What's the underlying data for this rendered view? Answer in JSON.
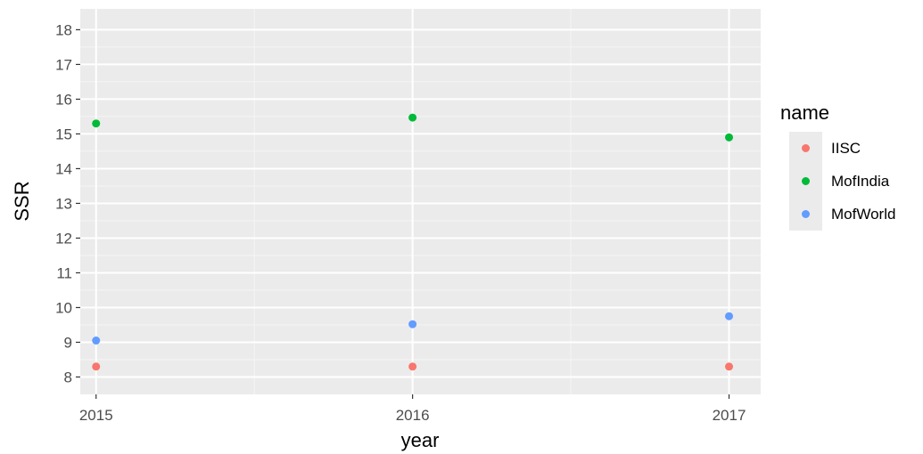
{
  "chart_data": {
    "type": "scatter",
    "title": "",
    "xlabel": "year",
    "ylabel": "SSR",
    "x": [
      2015,
      2016,
      2017
    ],
    "x_ticks": [
      "2015",
      "2016",
      "2017"
    ],
    "xlim": [
      2014.95,
      2017.1
    ],
    "y_ticks": [
      "8",
      "9",
      "10",
      "11",
      "12",
      "13",
      "14",
      "15",
      "16",
      "17",
      "18"
    ],
    "ylim": [
      7.5,
      18.6
    ],
    "grid": true,
    "legend_title": "name",
    "legend_position": "right",
    "series": [
      {
        "name": "IISC",
        "color": "#F8766D",
        "values": [
          8.3,
          8.3,
          8.3
        ]
      },
      {
        "name": "MofIndia",
        "color": "#00BA38",
        "values": [
          15.3,
          15.47,
          14.9
        ]
      },
      {
        "name": "MofWorld",
        "color": "#619CFF",
        "values": [
          9.05,
          9.52,
          9.75
        ]
      }
    ]
  }
}
